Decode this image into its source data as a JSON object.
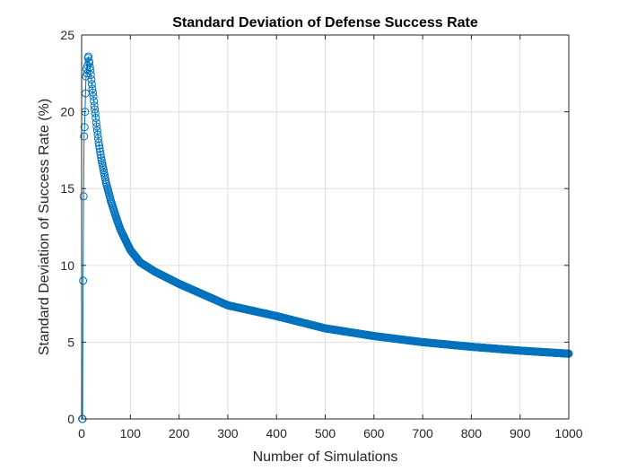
{
  "chart_data": {
    "type": "line",
    "title": "Standard Deviation of Defense Success Rate",
    "xlabel": "Number of Simulations",
    "ylabel": "Standard Deviation of Success Rate (%)",
    "xlim": [
      0,
      1000
    ],
    "ylim": [
      0,
      25
    ],
    "xticks": [
      "0",
      "100",
      "200",
      "300",
      "400",
      "500",
      "600",
      "700",
      "800",
      "900",
      "1000"
    ],
    "yticks": [
      "0",
      "5",
      "10",
      "15",
      "20",
      "25"
    ],
    "grid": true,
    "marker": "circle",
    "color": "#0072BD",
    "series": [
      {
        "x": [
          1,
          2,
          3,
          4,
          5,
          6,
          7,
          8,
          9,
          10,
          11,
          12,
          13,
          14,
          15,
          16,
          17,
          18,
          19,
          20,
          22,
          24,
          26,
          28,
          30,
          35,
          40,
          50,
          60,
          70,
          80,
          100,
          120,
          150,
          200,
          250,
          300,
          350,
          400,
          500,
          600,
          700,
          800,
          900,
          1000
        ],
        "y": [
          0,
          0,
          9.0,
          14.5,
          18.4,
          19.0,
          20.0,
          21.2,
          22.3,
          22.8,
          22.5,
          23.0,
          23.5,
          23.6,
          23.3,
          23.2,
          22.9,
          22.7,
          22.4,
          22.1,
          21.5,
          21.0,
          20.4,
          19.9,
          19.3,
          18.0,
          17.0,
          15.4,
          14.2,
          13.2,
          12.3,
          11.0,
          10.2,
          9.6,
          8.8,
          8.1,
          7.4,
          7.05,
          6.7,
          5.9,
          5.4,
          5.0,
          4.7,
          4.45,
          4.25
        ]
      }
    ]
  }
}
